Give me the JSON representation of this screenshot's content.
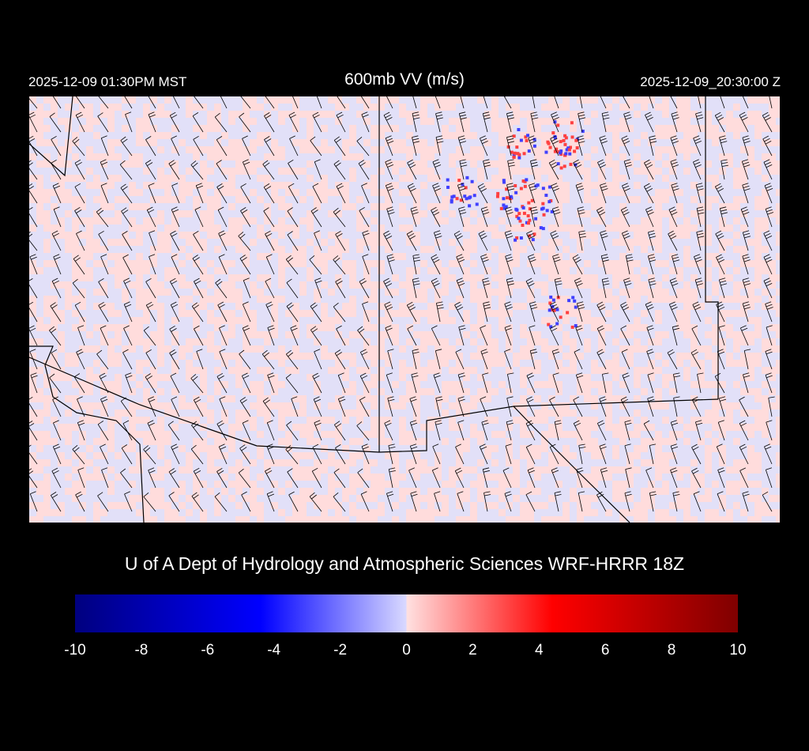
{
  "header": {
    "local_time": "2025-12-09 01:30PM MST",
    "title": "600mb VV (m/s)",
    "valid_time": "2025-12-09_20:30:00 Z"
  },
  "credit": "U of A Dept of Hydrology and Atmospheric Sciences WRF-HRRR 18Z",
  "colorbar": {
    "min": -10,
    "max": 10,
    "ticks": [
      "-10",
      "-8",
      "-6",
      "-4",
      "-2",
      "0",
      "2",
      "4",
      "6",
      "8",
      "10"
    ],
    "colors": [
      "#00007f",
      "#0000ff",
      "#d8d8ff",
      "#ffe0e0",
      "#ff0000",
      "#7f0000"
    ]
  },
  "map": {
    "field": "600mb vertical velocity",
    "overlay": "wind barbs",
    "background_color": "#e2e0f8",
    "positive_color": "#ffdcdc"
  }
}
